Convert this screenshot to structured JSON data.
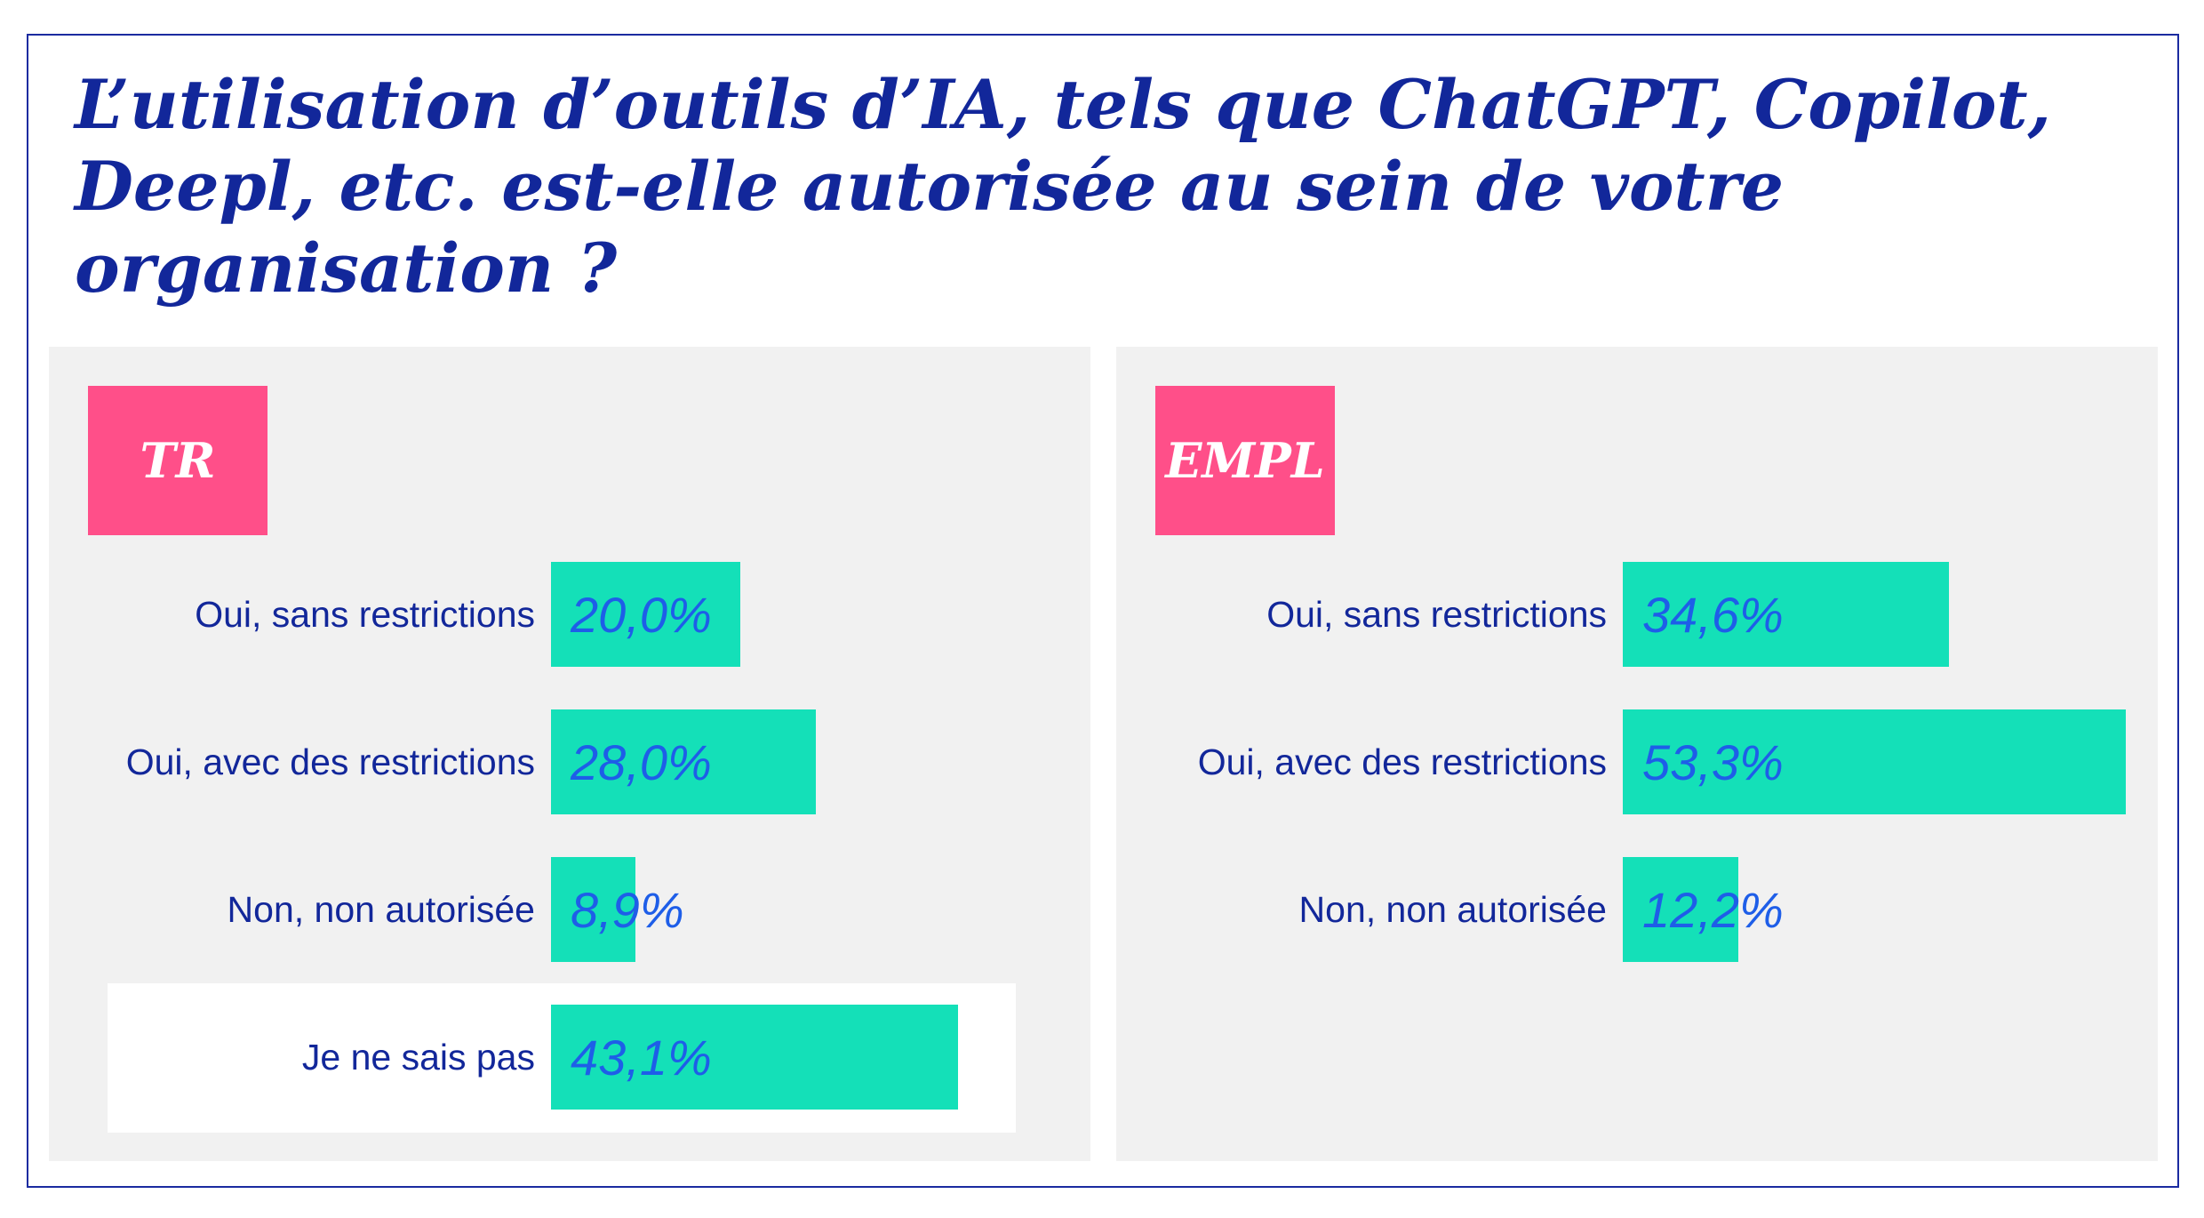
{
  "title": "L’utilisation d’outils d’IA, tels que ChatGPT, Copilot, Deepl, etc. est-elle autorisée au sein de votre organisation ?",
  "colors": {
    "title": "#12279a",
    "tag": "#ff4f89",
    "bar": "#14e0b8",
    "value_text": "#1e5ee8",
    "panel": "#f1f1f1"
  },
  "chart_data": [
    {
      "type": "bar",
      "orientation": "horizontal",
      "title": "TR",
      "categories": [
        "Oui, sans restrictions",
        "Oui, avec des restrictions",
        "Non, non autorisée",
        "Je ne sais pas"
      ],
      "values": [
        20.0,
        28.0,
        8.9,
        43.1
      ],
      "value_labels": [
        "20,0%",
        "28,0%",
        "8,9%",
        "43,1%"
      ],
      "highlighted_category": "Je ne sais pas",
      "xlim": [
        0,
        60
      ]
    },
    {
      "type": "bar",
      "orientation": "horizontal",
      "title": "EMPL",
      "categories": [
        "Oui, sans restrictions",
        "Oui, avec des restrictions",
        "Non, non autorisée"
      ],
      "values": [
        34.6,
        53.3,
        12.2
      ],
      "value_labels": [
        "34,6%",
        "53,3%",
        "12,2%"
      ],
      "xlim": [
        0,
        60
      ]
    }
  ]
}
